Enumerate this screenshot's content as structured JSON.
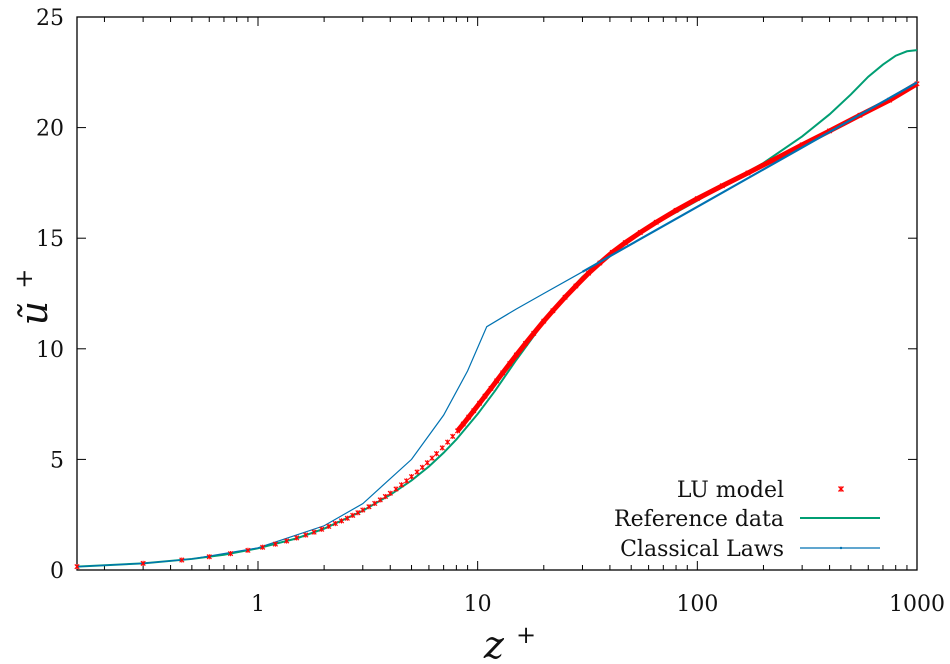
{
  "chart_data": {
    "type": "line",
    "title": "",
    "xlabel_base": "z",
    "xlabel_sup": "+",
    "ylabel_base": "ũ",
    "ylabel_sup": "+",
    "x_scale": "log",
    "xlim": [
      0.15,
      1000
    ],
    "ylim": [
      0,
      25
    ],
    "xticks": [
      {
        "value": 1,
        "label": "1"
      },
      {
        "value": 10,
        "label": "10"
      },
      {
        "value": 100,
        "label": "100"
      },
      {
        "value": 1000,
        "label": "1000"
      }
    ],
    "yticks": [
      {
        "value": 0,
        "label": "0"
      },
      {
        "value": 5,
        "label": "5"
      },
      {
        "value": 10,
        "label": "10"
      },
      {
        "value": 15,
        "label": "15"
      },
      {
        "value": 20,
        "label": "20"
      },
      {
        "value": 25,
        "label": "25"
      }
    ],
    "grid": false,
    "legend_position": "bottom-right",
    "series": [
      {
        "name": "LU model",
        "style": "markers",
        "color": "#ff0000",
        "x": [
          0.15,
          0.3,
          0.45,
          0.6,
          0.75,
          0.9,
          1.05,
          1.2,
          1.35,
          1.5,
          1.65,
          1.8,
          1.95,
          2.1,
          2.25,
          2.4,
          2.55,
          2.7,
          2.85,
          3.0,
          3.2,
          3.4,
          3.6,
          3.8,
          4.0,
          4.25,
          4.5,
          4.75,
          5.0,
          5.3,
          5.6,
          5.9,
          6.2,
          6.5,
          6.9,
          7.3,
          7.7,
          8.1,
          8.6,
          9.1,
          9.6,
          10.2,
          10.8,
          11.5,
          12.2,
          13.0,
          14.0,
          15.0,
          16.5,
          18.0,
          20.0,
          22.0,
          25.0,
          28.0,
          32.0,
          36.0,
          41.0,
          47.0,
          55.0,
          65.0,
          80.0,
          100.0,
          130.0,
          170.0,
          220.0,
          300.0,
          400.0,
          550.0,
          750.0,
          1000.0
        ],
        "y": [
          0.15,
          0.3,
          0.45,
          0.6,
          0.74,
          0.89,
          1.03,
          1.17,
          1.31,
          1.45,
          1.58,
          1.71,
          1.84,
          1.97,
          2.1,
          2.22,
          2.34,
          2.47,
          2.59,
          2.71,
          2.86,
          3.01,
          3.17,
          3.32,
          3.47,
          3.66,
          3.85,
          4.03,
          4.22,
          4.43,
          4.64,
          4.85,
          5.06,
          5.26,
          5.52,
          5.78,
          6.04,
          6.29,
          6.6,
          6.91,
          7.2,
          7.54,
          7.86,
          8.21,
          8.55,
          8.91,
          9.33,
          9.72,
          10.24,
          10.7,
          11.25,
          11.72,
          12.33,
          12.84,
          13.42,
          13.88,
          14.36,
          14.8,
          15.26,
          15.72,
          16.26,
          16.79,
          17.37,
          17.95,
          18.52,
          19.22,
          19.85,
          20.56,
          21.24,
          21.98
        ]
      },
      {
        "name": "Reference data",
        "style": "line",
        "color": "#009e73",
        "x": [
          0.15,
          0.3,
          0.5,
          0.7,
          1.0,
          1.5,
          2.0,
          3.0,
          4.0,
          5.0,
          6.0,
          7.0,
          8.0,
          10.0,
          12.0,
          15.0,
          20.0,
          25.0,
          30.0,
          40.0,
          50.0,
          70.0,
          100.0,
          150.0,
          200.0,
          300.0,
          400.0,
          500.0,
          600.0,
          700.0,
          800.0,
          900.0,
          1000.0
        ],
        "y": [
          0.15,
          0.3,
          0.5,
          0.69,
          0.98,
          1.43,
          1.87,
          2.68,
          3.4,
          4.05,
          4.68,
          5.3,
          5.9,
          7.05,
          8.1,
          9.5,
          11.2,
          12.4,
          13.25,
          14.3,
          15.0,
          15.85,
          16.7,
          17.7,
          18.4,
          19.6,
          20.6,
          21.5,
          22.3,
          22.85,
          23.25,
          23.45,
          23.5
        ]
      },
      {
        "name": "Classical Laws",
        "style": "line-thin",
        "color": "#0072b2",
        "x": [
          0.15,
          0.3,
          0.5,
          1.0,
          2.0,
          3.0,
          5.0,
          7.0,
          9.0,
          11.0,
          15.0,
          20.0,
          30.0,
          50.0,
          100.0,
          200.0,
          300.0,
          500.0,
          1000.0
        ],
        "y": [
          0.15,
          0.3,
          0.5,
          1.0,
          2.0,
          3.0,
          5.0,
          7.0,
          9.0,
          11.0,
          11.8,
          12.5,
          13.48,
          14.73,
          16.42,
          18.11,
          19.1,
          20.35,
          22.04
        ]
      }
    ]
  }
}
